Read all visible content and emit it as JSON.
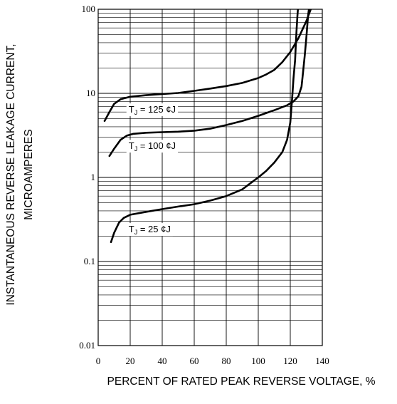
{
  "chart_data": {
    "type": "line",
    "title": "",
    "xlabel": "PERCENT OF RATED PEAK REVERSE VOLTAGE, %",
    "ylabel": "INSTANTANEOUS REVERSE LEAKAGE CURRENT, MICROAMPERES",
    "x_ticks": [
      "0",
      "20",
      "40",
      "60",
      "80",
      "100",
      "120",
      "140"
    ],
    "y_ticks": [
      "100",
      "10",
      "1",
      "0.1",
      "0.01"
    ],
    "xlim": [
      0,
      140
    ],
    "ylim": [
      0.01,
      100
    ],
    "y_scale": "log",
    "grid": true,
    "series": [
      {
        "name": "TJ = 125 °C",
        "label_text": "J = 125 ¢J",
        "x": [
          4,
          7,
          10,
          14,
          20,
          30,
          40,
          50,
          60,
          70,
          80,
          90,
          100,
          105,
          110,
          115,
          120,
          125,
          130,
          134
        ],
        "y": [
          4.7,
          6.0,
          7.5,
          8.5,
          9.1,
          9.5,
          9.8,
          10.1,
          10.7,
          11.4,
          12.2,
          13.3,
          15.2,
          16.8,
          19.0,
          23.5,
          31.0,
          45.0,
          72.0,
          115.0
        ]
      },
      {
        "name": "TJ = 100 °C",
        "label_text": "J = 100 ¢J",
        "x": [
          7,
          10,
          14,
          18,
          22,
          30,
          40,
          50,
          60,
          70,
          80,
          90,
          100,
          110,
          118,
          122,
          125,
          127,
          128,
          129,
          130,
          131,
          132
        ],
        "y": [
          1.8,
          2.2,
          2.8,
          3.15,
          3.3,
          3.4,
          3.45,
          3.5,
          3.6,
          3.8,
          4.2,
          4.7,
          5.4,
          6.3,
          7.2,
          8.0,
          9.2,
          12.0,
          18.0,
          28.0,
          45.0,
          80.0,
          115.0
        ]
      },
      {
        "name": "TJ = 25 °C",
        "label_text": "J = 25 ¢J",
        "x": [
          8,
          10,
          13,
          16,
          20,
          30,
          40,
          50,
          60,
          70,
          80,
          90,
          95,
          100,
          105,
          110,
          115,
          118,
          120,
          121,
          122,
          123,
          123.5,
          124,
          124.5,
          125
        ],
        "y": [
          0.17,
          0.22,
          0.29,
          0.33,
          0.36,
          0.39,
          0.42,
          0.45,
          0.48,
          0.53,
          0.6,
          0.72,
          0.85,
          1.0,
          1.2,
          1.5,
          2.0,
          2.8,
          4.5,
          8.0,
          15.0,
          25.0,
          40.0,
          60.0,
          85.0,
          115.0
        ]
      }
    ]
  }
}
